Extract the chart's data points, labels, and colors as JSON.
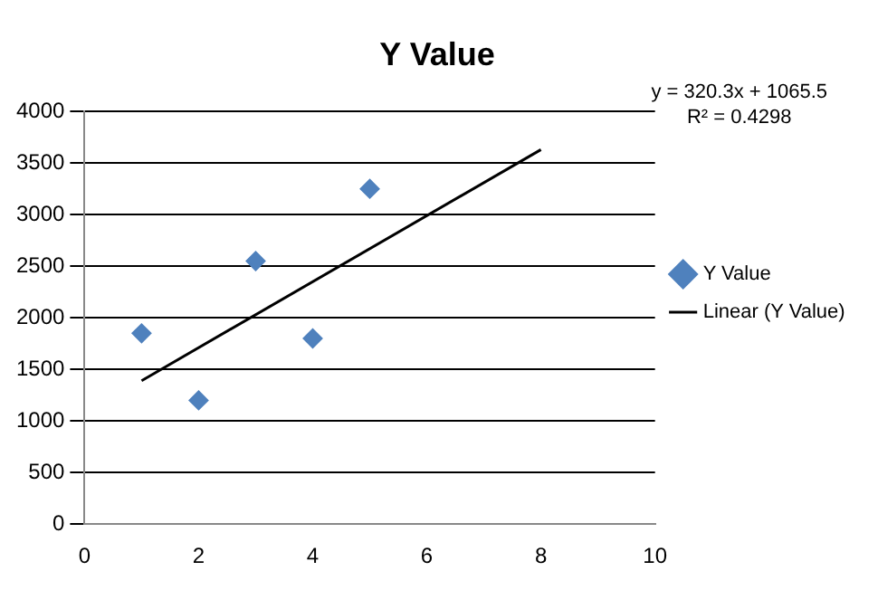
{
  "chart_data": {
    "type": "scatter",
    "title": "Y Value",
    "xlim": [
      0,
      10
    ],
    "xticks": [
      0,
      2,
      4,
      6,
      8,
      10
    ],
    "ylim": [
      0,
      4000
    ],
    "yticks": [
      0,
      500,
      1000,
      1500,
      2000,
      2500,
      3000,
      3500,
      4000
    ],
    "grid": "y",
    "legend": "right",
    "marker": "diamond",
    "annotations": [
      "y = 320.3x + 1065.5",
      "R² = 0.4298"
    ],
    "series": [
      {
        "name": "Y Value",
        "color": "#4f81bd",
        "x": [
          1,
          2,
          3,
          4,
          5
        ],
        "values": [
          1850,
          1200,
          2550,
          1800,
          3250
        ]
      },
      {
        "name": "Linear (Y Value)",
        "type": "line",
        "color": "#000000",
        "x": [
          1,
          8
        ],
        "values": [
          1390,
          3630
        ],
        "line_style": "solid",
        "marker": "none"
      }
    ]
  }
}
